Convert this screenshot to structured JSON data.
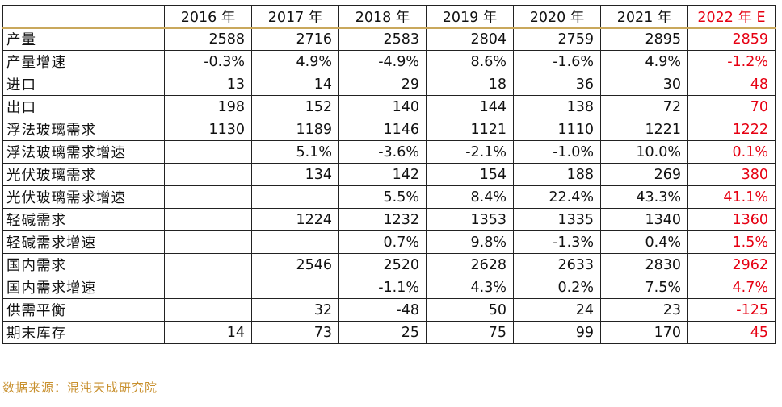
{
  "table": {
    "headers": [
      "",
      "2016 年",
      "2017 年",
      "2018 年",
      "2019 年",
      "2020 年",
      "2021 年",
      "2022 年 E"
    ],
    "highlight_column": 7,
    "highlight_color": "#e60012",
    "rows": [
      {
        "label": "产量",
        "values": [
          "2588",
          "2716",
          "2583",
          "2804",
          "2759",
          "2895",
          "2859"
        ]
      },
      {
        "label": "产量增速",
        "values": [
          "-0.3%",
          "4.9%",
          "-4.9%",
          "8.6%",
          "-1.6%",
          "4.9%",
          "-1.2%"
        ]
      },
      {
        "label": "进口",
        "values": [
          "13",
          "14",
          "29",
          "18",
          "36",
          "30",
          "48"
        ]
      },
      {
        "label": "出口",
        "values": [
          "198",
          "152",
          "140",
          "144",
          "138",
          "72",
          "70"
        ]
      },
      {
        "label": "浮法玻璃需求",
        "values": [
          "1130",
          "1189",
          "1146",
          "1121",
          "1110",
          "1221",
          "1222"
        ]
      },
      {
        "label": "浮法玻璃需求增速",
        "values": [
          "",
          "5.1%",
          "-3.6%",
          "-2.1%",
          "-1.0%",
          "10.0%",
          "0.1%"
        ]
      },
      {
        "label": "光伏玻璃需求",
        "values": [
          "",
          "134",
          "142",
          "154",
          "188",
          "269",
          "380"
        ]
      },
      {
        "label": "光伏玻璃需求增速",
        "values": [
          "",
          "",
          "5.5%",
          "8.4%",
          "22.4%",
          "43.3%",
          "41.1%"
        ]
      },
      {
        "label": "轻碱需求",
        "values": [
          "",
          "1224",
          "1232",
          "1353",
          "1335",
          "1340",
          "1360"
        ]
      },
      {
        "label": "轻碱需求增速",
        "values": [
          "",
          "",
          "0.7%",
          "9.8%",
          "-1.3%",
          "0.4%",
          "1.5%"
        ]
      },
      {
        "label": "国内需求",
        "values": [
          "",
          "2546",
          "2520",
          "2628",
          "2633",
          "2830",
          "2962"
        ]
      },
      {
        "label": "国内需求增速",
        "values": [
          "",
          "",
          "-1.1%",
          "4.3%",
          "0.2%",
          "7.5%",
          "4.7%"
        ]
      },
      {
        "label": "供需平衡",
        "values": [
          "",
          "32",
          "-48",
          "50",
          "24",
          "23",
          "-125"
        ]
      },
      {
        "label": "期末库存",
        "values": [
          "14",
          "73",
          "25",
          "75",
          "99",
          "170",
          "45"
        ]
      }
    ]
  },
  "source": "数据来源：混沌天成研究院",
  "source_color": "#c8902e"
}
